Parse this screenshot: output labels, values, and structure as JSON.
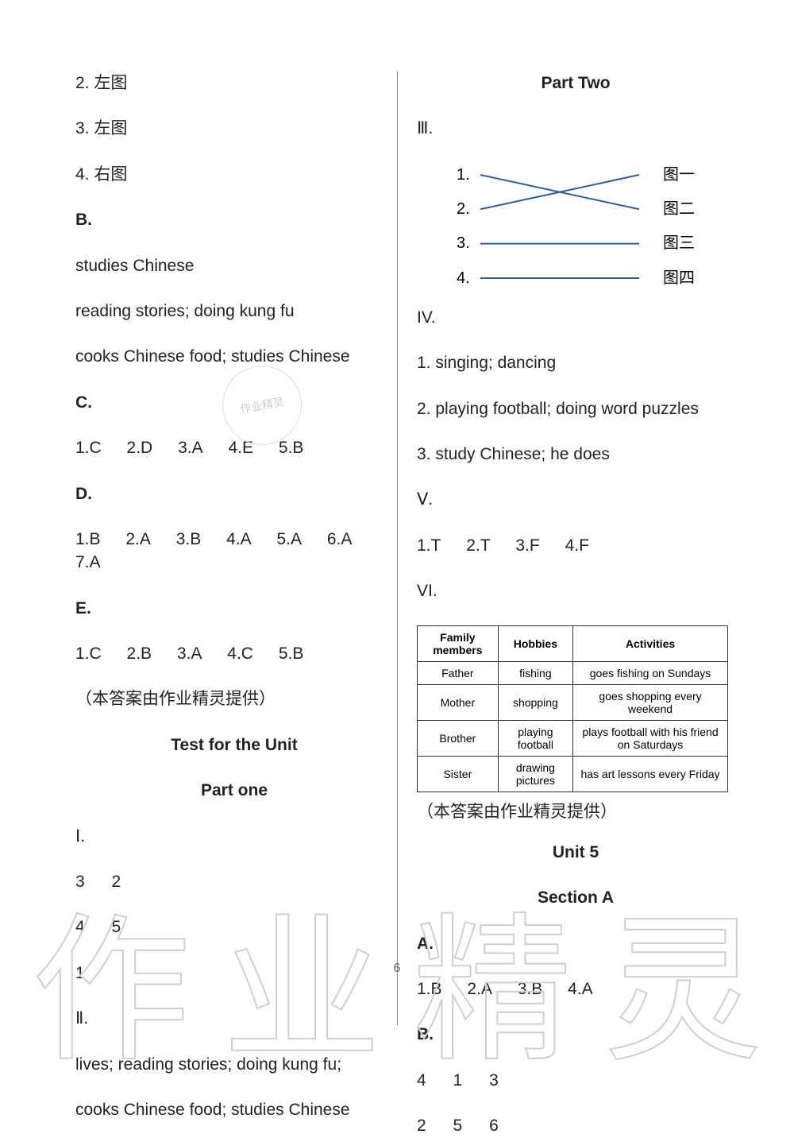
{
  "colors": {
    "text": "#222222",
    "divider": "#888888",
    "line": "#2b5aa8",
    "wm": "#cfcfcf",
    "border": "#333333"
  },
  "left": {
    "l2": "2. 左图",
    "l3": "3. 左图",
    "l4": "4. 右图",
    "B": "B.",
    "b1": "studies Chinese",
    "b2": "reading stories;   doing kung fu",
    "b3": "cooks Chinese food;   studies Chinese",
    "C": "C.",
    "c_answers": [
      "1.C",
      "2.D",
      "3.A",
      "4.E",
      "5.B"
    ],
    "D": "D.",
    "d_answers": [
      "1.B",
      "2.A",
      "3.B",
      "4.A",
      "5.A",
      "6.A",
      "7.A"
    ],
    "E": "E.",
    "e_answers": [
      "1.C",
      "2.B",
      "3.A",
      "4.C",
      "5.B"
    ],
    "note": "（本答案由作业精灵提供）",
    "test_title": "Test for the Unit",
    "part_one": "Part one",
    "I": "Ⅰ.",
    "i_row1": [
      "3",
      "2"
    ],
    "i_row2": [
      "4",
      "5"
    ],
    "i_row3": [
      "1"
    ],
    "II": "Ⅱ.",
    "ii_line1": "lives;     reading stories;     doing kung fu;",
    "ii_line2": "cooks Chinese food;     studies Chinese"
  },
  "right": {
    "part_two": "Part Two",
    "III": "Ⅲ.",
    "match": {
      "left": [
        "1.",
        "2.",
        "3.",
        "4."
      ],
      "right": [
        "图一",
        "图二",
        "图三",
        "图四"
      ],
      "edges": [
        [
          0,
          1
        ],
        [
          1,
          0
        ],
        [
          2,
          2
        ],
        [
          3,
          3
        ]
      ],
      "line_color": "#2b5aa8"
    },
    "IV": "IV.",
    "iv1": "1. singing;    dancing",
    "iv2": "2. playing football;   doing word puzzles",
    "iv3": "3. study Chinese;    he does",
    "V": "Ⅴ.",
    "v_answers": [
      "1.T",
      "2.T",
      "3.F",
      "4.F"
    ],
    "VI": "VI.",
    "table": {
      "columns": [
        "Family members",
        "Hobbies",
        "Activities"
      ],
      "rows": [
        [
          "Father",
          "fishing",
          "goes fishing on Sundays"
        ],
        [
          "Mother",
          "shopping",
          "goes shopping every weekend"
        ],
        [
          "Brother",
          "playing football",
          "plays football with his friend on Saturdays"
        ],
        [
          "Sister",
          "drawing pictures",
          "has art lessons every Friday"
        ]
      ]
    },
    "note": "（本答案由作业精灵提供）",
    "unit5": "Unit 5",
    "sectionA": "Section A",
    "A": "A.",
    "a_answers": [
      "1.B",
      "2.A",
      "3.B",
      "4.A"
    ],
    "B": "B.",
    "b_row1": [
      "4",
      "1",
      "3"
    ],
    "b_row2": [
      "2",
      "5",
      "6"
    ]
  },
  "watermark": {
    "c1": "作",
    "c2": "业",
    "c3": "精",
    "c4": "灵",
    "small": "作业精灵"
  },
  "page_num": "6"
}
